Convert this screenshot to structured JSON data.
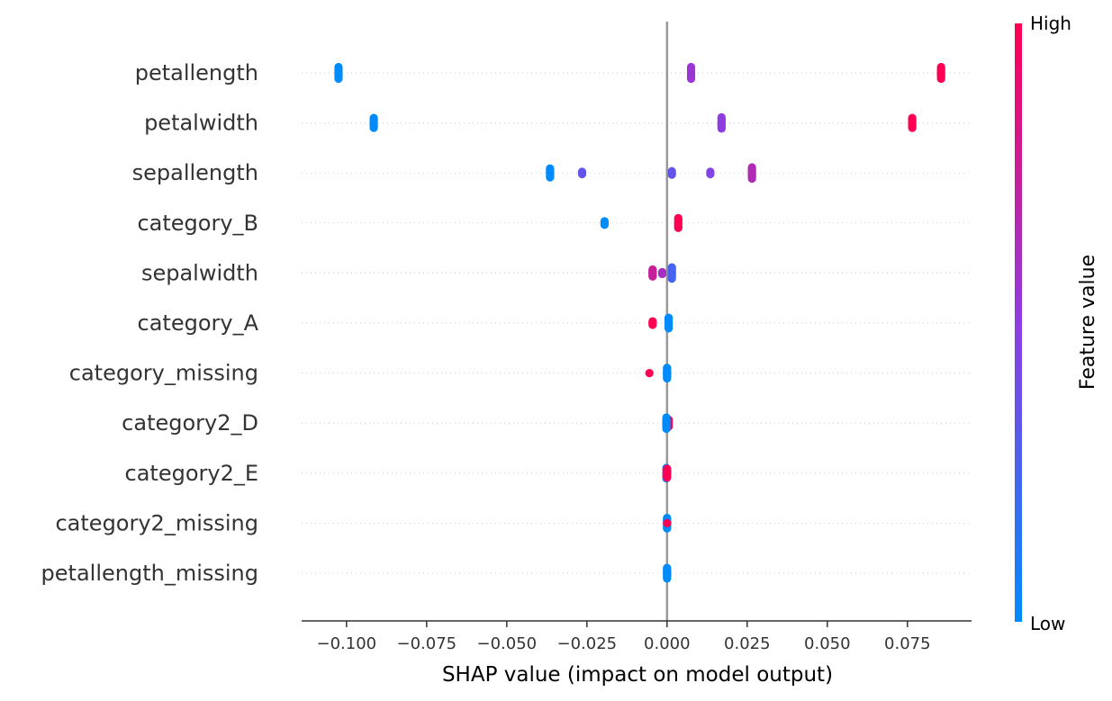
{
  "chart_data": {
    "type": "scatter",
    "title": "",
    "xlabel": "SHAP value (impact on model output)",
    "ylabel": "",
    "xlim": [
      -0.114,
      0.095
    ],
    "xticks": [
      -0.1,
      -0.075,
      -0.05,
      -0.025,
      0.0,
      0.025,
      0.05,
      0.075
    ],
    "xtick_labels": [
      "−0.100",
      "−0.075",
      "−0.050",
      "−0.025",
      "0.000",
      "0.025",
      "0.050",
      "0.075"
    ],
    "colorbar": {
      "title": "Feature value",
      "high_label": "High",
      "low_label": "Low",
      "low_color": "#008bfb",
      "mid_color": "#8f3de1",
      "high_color": "#ff0052"
    },
    "grid": "dotted horizontal per feature",
    "features": [
      {
        "name": "petallength",
        "clusters": [
          {
            "x": -0.1025,
            "n": 10,
            "spread": 0.5,
            "value": 0.0
          },
          {
            "x": 0.0075,
            "n": 10,
            "spread": 0.5,
            "value": 0.55
          },
          {
            "x": 0.0855,
            "n": 10,
            "spread": 0.5,
            "value": 1.0
          }
        ]
      },
      {
        "name": "petalwidth",
        "clusters": [
          {
            "x": -0.0915,
            "n": 10,
            "spread": 0.42,
            "value": 0.0
          },
          {
            "x": 0.017,
            "n": 10,
            "spread": 0.48,
            "value": 0.5
          },
          {
            "x": 0.0765,
            "n": 10,
            "spread": 0.42,
            "value": 1.0
          }
        ]
      },
      {
        "name": "sepallength",
        "clusters": [
          {
            "x": -0.0365,
            "n": 10,
            "spread": 0.38,
            "value": 0.0
          },
          {
            "x": -0.0265,
            "n": 3,
            "spread": 0.1,
            "value": 0.35
          },
          {
            "x": 0.0015,
            "n": 4,
            "spread": 0.15,
            "value": 0.35
          },
          {
            "x": 0.0135,
            "n": 3,
            "spread": 0.1,
            "value": 0.45
          },
          {
            "x": 0.0265,
            "n": 10,
            "spread": 0.48,
            "value": 0.65
          }
        ]
      },
      {
        "name": "category_B",
        "clusters": [
          {
            "x": -0.0195,
            "n": 4,
            "spread": 0.15,
            "value": 0.0
          },
          {
            "x": 0.0035,
            "n": 10,
            "spread": 0.42,
            "value": 1.0
          }
        ]
      },
      {
        "name": "sepalwidth",
        "clusters": [
          {
            "x": -0.0045,
            "n": 10,
            "spread": 0.3,
            "value": 0.75
          },
          {
            "x": -0.0015,
            "n": 3,
            "spread": 0.08,
            "value": 0.6
          },
          {
            "x": 0.0015,
            "n": 12,
            "spread": 0.48,
            "value": 0.25
          }
        ]
      },
      {
        "name": "category_A",
        "clusters": [
          {
            "x": -0.0045,
            "n": 4,
            "spread": 0.15,
            "value": 1.0
          },
          {
            "x": 0.0005,
            "n": 12,
            "spread": 0.45,
            "value": 0.0
          }
        ]
      },
      {
        "name": "category_missing",
        "clusters": [
          {
            "x": -0.0055,
            "n": 1,
            "spread": 0.0,
            "value": 1.0
          },
          {
            "x": 0.0,
            "n": 12,
            "spread": 0.45,
            "value": 0.0
          }
        ]
      },
      {
        "name": "category2_D",
        "clusters": [
          {
            "x": 0.0005,
            "n": 8,
            "spread": 0.3,
            "value": 1.0
          },
          {
            "x": -0.0002,
            "n": 10,
            "spread": 0.48,
            "value": 0.0
          }
        ]
      },
      {
        "name": "category2_E",
        "clusters": [
          {
            "x": -0.0002,
            "n": 10,
            "spread": 0.45,
            "value": 0.0
          },
          {
            "x": 0.0,
            "n": 10,
            "spread": 0.38,
            "value": 1.0
          }
        ]
      },
      {
        "name": "category2_missing",
        "clusters": [
          {
            "x": 0.0,
            "n": 12,
            "spread": 0.45,
            "value": 0.0
          },
          {
            "x": 0.0,
            "n": 1,
            "spread": 0.0,
            "value": 1.0
          }
        ]
      },
      {
        "name": "petallength_missing",
        "clusters": [
          {
            "x": 0.0,
            "n": 12,
            "spread": 0.45,
            "value": 0.0
          }
        ]
      }
    ]
  }
}
